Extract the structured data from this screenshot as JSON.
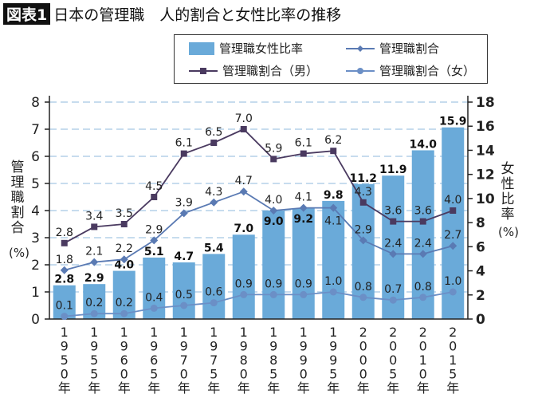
{
  "title": {
    "badge": "図表1",
    "text": "日本の管理職　人的割合と女性比率の推移"
  },
  "colors": {
    "bar": "#6aaad9",
    "male": "#4a3a60",
    "total": "#5a7ab3",
    "female": "#6b8fc6",
    "grid": "#8fb9dc"
  },
  "chart_data": {
    "type": "bar+line",
    "categories": [
      "1950年",
      "1955年",
      "1960年",
      "1965年",
      "1970年",
      "1975年",
      "1980年",
      "1985年",
      "1990年",
      "1995年",
      "2000年",
      "2005年",
      "2010年",
      "2015年"
    ],
    "left_axis": {
      "label": "管理職割合",
      "unit": "(%)",
      "ylim": [
        0,
        8
      ],
      "ticks": [
        "0",
        "1",
        "2",
        "3",
        "4",
        "5",
        "6",
        "7",
        "8"
      ]
    },
    "right_axis": {
      "label": "女性比率",
      "unit": "(%)",
      "ylim": [
        0,
        18
      ],
      "ticks": [
        "0",
        "2",
        "4",
        "6",
        "8",
        "10",
        "12",
        "14",
        "16",
        "18"
      ]
    },
    "grid": true,
    "legend_position": "top-right",
    "series": [
      {
        "name": "管理職女性比率",
        "type": "bar",
        "axis": "right",
        "values": [
          2.8,
          2.9,
          4.0,
          5.1,
          4.7,
          5.4,
          7.0,
          9.0,
          9.2,
          9.8,
          11.2,
          11.9,
          14.0,
          15.9
        ]
      },
      {
        "name": "管理職割合",
        "type": "line",
        "marker": "diamond",
        "axis": "left",
        "values": [
          1.8,
          2.1,
          2.2,
          2.9,
          3.9,
          4.3,
          4.7,
          4.0,
          4.1,
          4.1,
          2.9,
          2.4,
          2.4,
          2.7
        ]
      },
      {
        "name": "管理職割合（男）",
        "type": "line",
        "marker": "square",
        "axis": "left",
        "values": [
          2.8,
          3.4,
          3.5,
          4.5,
          6.1,
          6.5,
          7.0,
          5.9,
          6.1,
          6.2,
          4.3,
          3.6,
          3.6,
          4.0
        ]
      },
      {
        "name": "管理職割合（女）",
        "type": "line",
        "marker": "circle",
        "axis": "left",
        "values": [
          0.1,
          0.2,
          0.2,
          0.4,
          0.5,
          0.6,
          0.9,
          0.9,
          0.9,
          1.0,
          0.8,
          0.7,
          0.8,
          1.0
        ]
      }
    ]
  }
}
